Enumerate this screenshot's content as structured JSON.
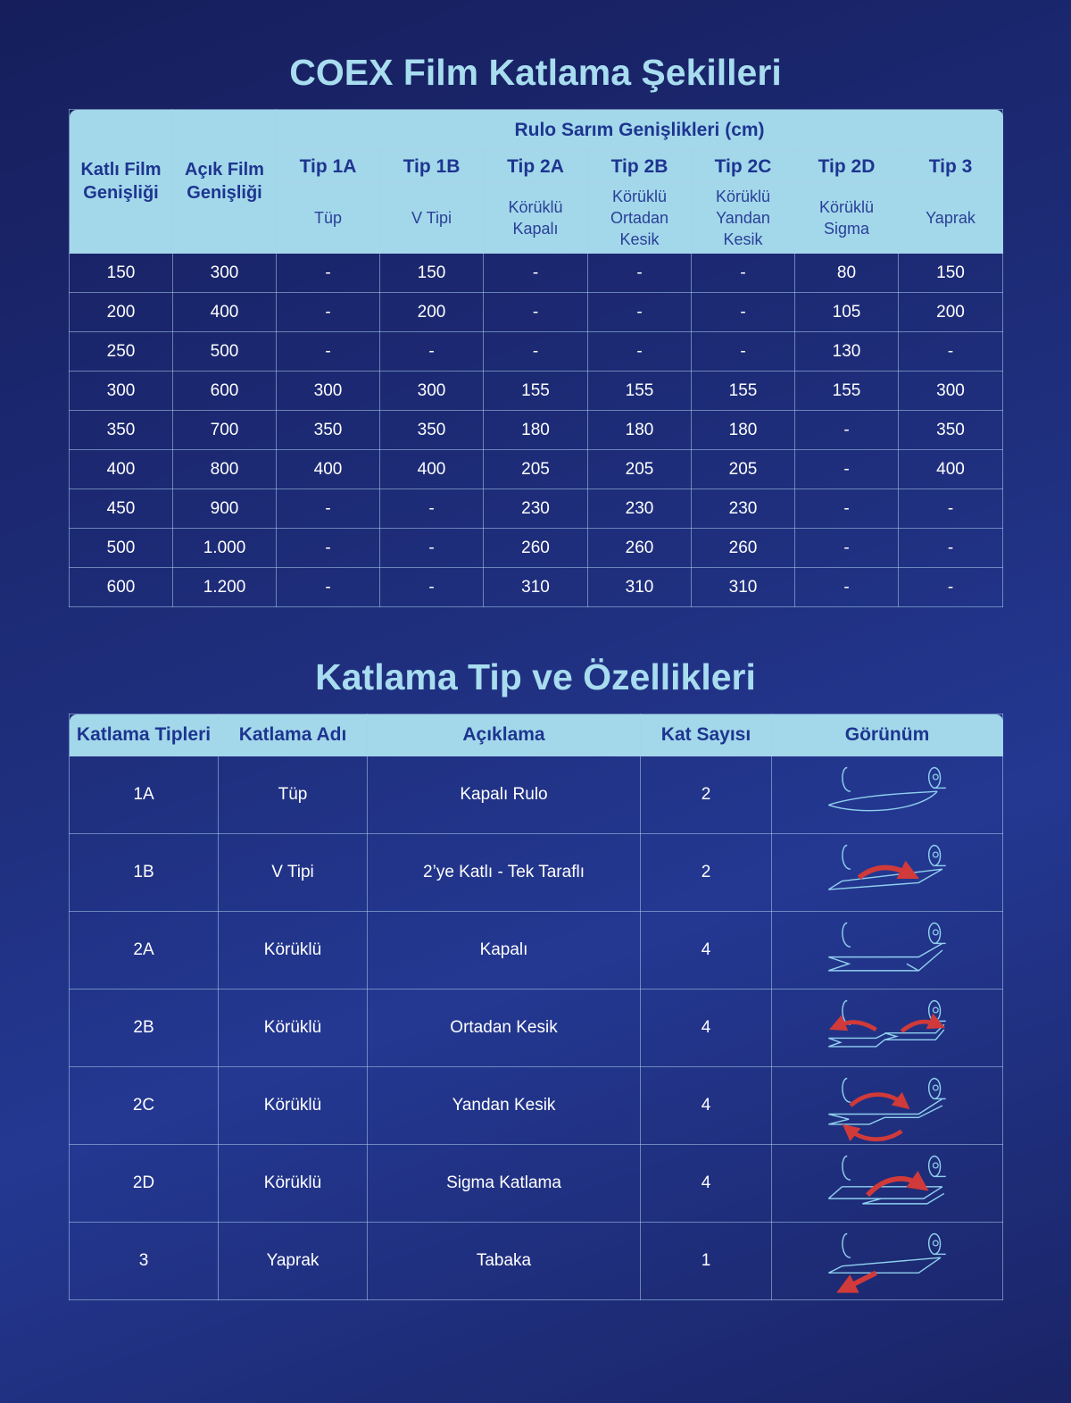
{
  "titles": {
    "main": "COEX Film Katlama Şekilleri",
    "second": "Katlama Tip ve Özellikleri"
  },
  "table1": {
    "col_folded": [
      "Katlı Film",
      "Genişliği"
    ],
    "col_open": [
      "Açık Film",
      "Genişliği"
    ],
    "group_header": "Rulo Sarım Genişlikleri (cm)",
    "types": [
      {
        "tip": "Tip 1A",
        "desc": [
          "Tüp"
        ]
      },
      {
        "tip": "Tip 1B",
        "desc": [
          "V Tipi"
        ]
      },
      {
        "tip": "Tip 2A",
        "desc": [
          "Körüklü",
          "Kapalı"
        ]
      },
      {
        "tip": "Tip 2B",
        "desc": [
          "Körüklü",
          "Ortadan",
          "Kesik"
        ]
      },
      {
        "tip": "Tip 2C",
        "desc": [
          "Körüklü",
          "Yandan",
          "Kesik"
        ]
      },
      {
        "tip": "Tip 2D",
        "desc": [
          "Körüklü",
          "Sigma"
        ]
      },
      {
        "tip": "Tip 3",
        "desc": [
          "Yaprak"
        ]
      }
    ],
    "rows": [
      [
        "150",
        "300",
        "-",
        "150",
        "-",
        "-",
        "-",
        "80",
        "150"
      ],
      [
        "200",
        "400",
        "-",
        "200",
        "-",
        "-",
        "-",
        "105",
        "200"
      ],
      [
        "250",
        "500",
        "-",
        "-",
        "-",
        "-",
        "-",
        "130",
        "-"
      ],
      [
        "300",
        "600",
        "300",
        "300",
        "155",
        "155",
        "155",
        "155",
        "300"
      ],
      [
        "350",
        "700",
        "350",
        "350",
        "180",
        "180",
        "180",
        "-",
        "350"
      ],
      [
        "400",
        "800",
        "400",
        "400",
        "205",
        "205",
        "205",
        "-",
        "400"
      ],
      [
        "450",
        "900",
        "-",
        "-",
        "230",
        "230",
        "230",
        "-",
        "-"
      ],
      [
        "500",
        "1.000",
        "-",
        "-",
        "260",
        "260",
        "260",
        "-",
        "-"
      ],
      [
        "600",
        "1.200",
        "-",
        "-",
        "310",
        "310",
        "310",
        "-",
        "-"
      ]
    ]
  },
  "table2": {
    "headers": [
      "Katlama Tipleri",
      "Katlama Adı",
      "Açıklama",
      "Kat Sayısı",
      "Görünüm"
    ],
    "rows": [
      {
        "code": "1A",
        "name": "Tüp",
        "desc": "Kapalı Rulo",
        "layers": "2",
        "icon": "tube-fold-icon"
      },
      {
        "code": "1B",
        "name": "V Tipi",
        "desc": "2’ye Katlı - Tek Taraflı",
        "layers": "2",
        "icon": "v-fold-icon"
      },
      {
        "code": "2A",
        "name": "Körüklü",
        "desc": "Kapalı",
        "layers": "4",
        "icon": "gusset-closed-icon"
      },
      {
        "code": "2B",
        "name": "Körüklü",
        "desc": "Ortadan Kesik",
        "layers": "4",
        "icon": "gusset-center-cut-icon"
      },
      {
        "code": "2C",
        "name": "Körüklü",
        "desc": "Yandan Kesik",
        "layers": "4",
        "icon": "gusset-side-cut-icon"
      },
      {
        "code": "2D",
        "name": "Körüklü",
        "desc": "Sigma Katlama",
        "layers": "4",
        "icon": "sigma-fold-icon"
      },
      {
        "code": "3",
        "name": "Yaprak",
        "desc": "Tabaka",
        "layers": "1",
        "icon": "sheet-icon"
      }
    ]
  },
  "colors": {
    "header_bg": "#a3d8ea",
    "header_text": "#1e3590",
    "title": "#a8dcef",
    "icon_line": "#8fd0ee",
    "arrow": "#d03a3a"
  }
}
